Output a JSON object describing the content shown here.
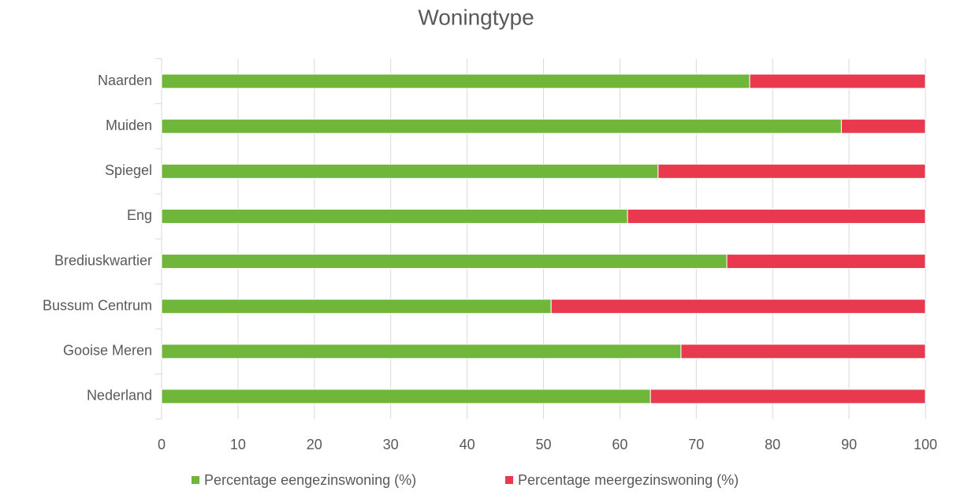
{
  "chart_data": {
    "type": "bar",
    "orientation": "horizontal",
    "stacked": true,
    "title": "Woningtype",
    "categories": [
      "Naarden",
      "Muiden",
      "Spiegel",
      "Eng",
      "Brediuskwartier",
      "Bussum Centrum",
      "Gooise Meren",
      "Nederland"
    ],
    "series": [
      {
        "name": "Percentage eengezinswoning (%)",
        "color": "#70b63a",
        "values": [
          77,
          89,
          65,
          61,
          74,
          51,
          68,
          64
        ]
      },
      {
        "name": "Percentage meergezinswoning (%)",
        "color": "#e8394f",
        "values": [
          23,
          11,
          35,
          39,
          26,
          49,
          32,
          36
        ]
      }
    ],
    "xlim": [
      0,
      100
    ],
    "xticks": [
      0,
      10,
      20,
      30,
      40,
      50,
      60,
      70,
      80,
      90,
      100
    ],
    "grid": true,
    "legend": "bottom"
  }
}
